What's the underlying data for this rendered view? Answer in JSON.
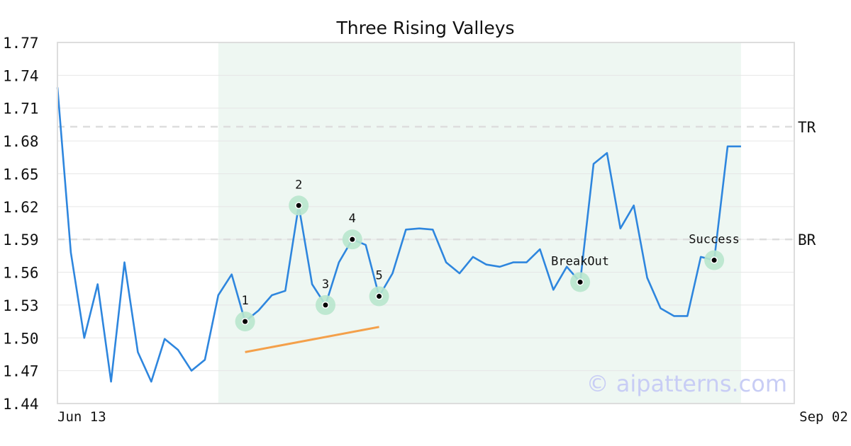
{
  "chart_data": {
    "type": "line",
    "title": "Three Rising Valleys",
    "xlabel": "",
    "ylabel": "",
    "ylim": [
      1.44,
      1.77
    ],
    "yticks": [
      "1.44",
      "1.47",
      "1.50",
      "1.53",
      "1.56",
      "1.59",
      "1.62",
      "1.65",
      "1.68",
      "1.71",
      "1.74",
      "1.77"
    ],
    "xticks": [
      {
        "label": "Jun 13",
        "index": 0
      },
      {
        "label": "Sep 02",
        "index": 55
      }
    ],
    "grid": true,
    "series": [
      {
        "color": "#2e86de",
        "values": [
          1.729,
          1.578,
          1.5,
          1.549,
          1.46,
          1.569,
          1.487,
          1.46,
          1.499,
          1.489,
          1.47,
          1.48,
          1.539,
          1.558,
          1.515,
          1.525,
          1.539,
          1.543,
          1.621,
          1.549,
          1.53,
          1.569,
          1.59,
          1.585,
          1.538,
          1.559,
          1.599,
          1.6,
          1.599,
          1.569,
          1.559,
          1.574,
          1.567,
          1.565,
          1.569,
          1.569,
          1.581,
          1.544,
          1.565,
          1.551,
          1.659,
          1.669,
          1.6,
          1.621,
          1.555,
          1.527,
          1.52,
          1.52,
          1.574,
          1.571,
          1.675,
          1.675
        ]
      }
    ],
    "highlight_band": {
      "from_index": 12,
      "to_index": 51,
      "color": "#eef7f2"
    },
    "reference_lines": [
      {
        "label": "TR",
        "value": 1.693
      },
      {
        "label": "BR",
        "value": 1.59
      }
    ],
    "trendline": {
      "color": "#f4a04a",
      "from": {
        "index": 14,
        "value": 1.487
      },
      "to": {
        "index": 24,
        "value": 1.51
      }
    },
    "points": [
      {
        "label": "1",
        "index": 14,
        "value": 1.515
      },
      {
        "label": "2",
        "index": 18,
        "value": 1.621
      },
      {
        "label": "3",
        "index": 20,
        "value": 1.53
      },
      {
        "label": "4",
        "index": 22,
        "value": 1.59
      },
      {
        "label": "5",
        "index": 24,
        "value": 1.538
      },
      {
        "label": "BreakOut",
        "index": 39,
        "value": 1.551
      },
      {
        "label": "Success",
        "index": 49,
        "value": 1.571
      }
    ],
    "watermark": "© aipatterns.com"
  }
}
